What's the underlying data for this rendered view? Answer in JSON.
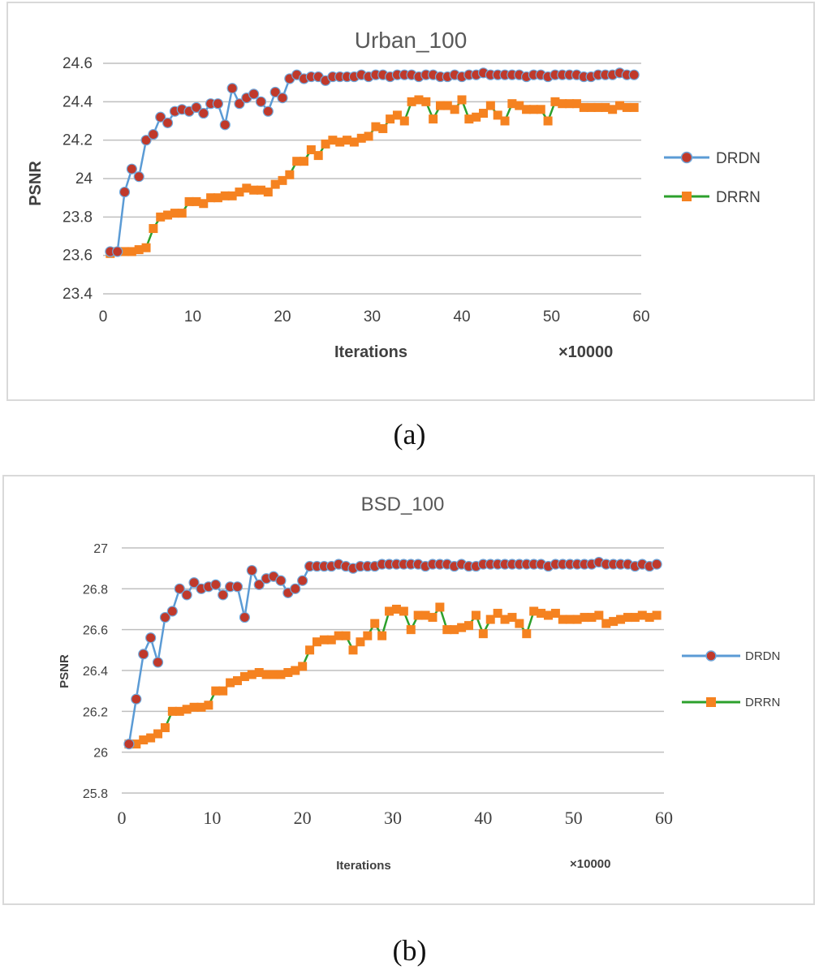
{
  "colors": {
    "drdn_line": "#5b9bd5",
    "drdn_marker_fill": "#c0392b",
    "drdn_marker_edge": "#6fa8dc",
    "drrn_line": "#2ca02c",
    "drrn_marker_fill": "#f58220",
    "grid": "#bfbfbf"
  },
  "chart_data": [
    {
      "type": "line",
      "title": "Urban_100",
      "xlabel": "Iterations",
      "ylabel": "PSNR",
      "x_multiplier_label": "×10000",
      "xlim": [
        0,
        60
      ],
      "ylim": [
        23.4,
        24.6
      ],
      "x_ticks": [
        "0",
        "10",
        "20",
        "30",
        "40",
        "50",
        "60"
      ],
      "y_ticks": [
        "23.4",
        "23.6",
        "23.8",
        "24",
        "24.2",
        "24.4",
        "24.6"
      ],
      "legend_position": "right",
      "grid": true,
      "series": [
        {
          "name": "DRDN",
          "x": [
            0.8,
            1.6,
            2.4,
            3.2,
            4.0,
            4.8,
            5.6,
            6.4,
            7.2,
            8.0,
            8.8,
            9.6,
            10.4,
            11.2,
            12.0,
            12.8,
            13.6,
            14.4,
            15.2,
            16.0,
            16.8,
            17.6,
            18.4,
            19.2,
            20.0,
            20.8,
            21.6,
            22.4,
            23.2,
            24.0,
            24.8,
            25.6,
            26.4,
            27.2,
            28.0,
            28.8,
            29.6,
            30.4,
            31.2,
            32.0,
            32.8,
            33.6,
            34.4,
            35.2,
            36.0,
            36.8,
            37.6,
            38.4,
            39.2,
            40.0,
            40.8,
            41.6,
            42.4,
            43.2,
            44.0,
            44.8,
            45.6,
            46.4,
            47.2,
            48.0,
            48.8,
            49.6,
            50.4,
            51.2,
            52.0,
            52.8,
            53.6,
            54.4,
            55.2,
            56.0,
            56.8,
            57.6,
            58.4,
            59.2
          ],
          "y": [
            23.62,
            23.62,
            23.93,
            24.05,
            24.01,
            24.2,
            24.23,
            24.32,
            24.29,
            24.35,
            24.36,
            24.35,
            24.37,
            24.34,
            24.39,
            24.39,
            24.28,
            24.47,
            24.39,
            24.42,
            24.44,
            24.4,
            24.35,
            24.45,
            24.42,
            24.52,
            24.54,
            24.52,
            24.53,
            24.53,
            24.51,
            24.53,
            24.53,
            24.53,
            24.53,
            24.54,
            24.53,
            24.54,
            24.54,
            24.53,
            24.54,
            24.54,
            24.54,
            24.53,
            24.54,
            24.54,
            24.53,
            24.53,
            24.54,
            24.53,
            24.54,
            24.54,
            24.55,
            24.54,
            24.54,
            24.54,
            24.54,
            24.54,
            24.53,
            24.54,
            24.54,
            24.53,
            24.54,
            24.54,
            24.54,
            24.54,
            24.53,
            24.53,
            24.54,
            24.54,
            24.54,
            24.55,
            24.54,
            24.54
          ]
        },
        {
          "name": "DRRN",
          "x": [
            0.8,
            1.6,
            2.4,
            3.2,
            4.0,
            4.8,
            5.6,
            6.4,
            7.2,
            8.0,
            8.8,
            9.6,
            10.4,
            11.2,
            12.0,
            12.8,
            13.6,
            14.4,
            15.2,
            16.0,
            16.8,
            17.6,
            18.4,
            19.2,
            20.0,
            20.8,
            21.6,
            22.4,
            23.2,
            24.0,
            24.8,
            25.6,
            26.4,
            27.2,
            28.0,
            28.8,
            29.6,
            30.4,
            31.2,
            32.0,
            32.8,
            33.6,
            34.4,
            35.2,
            36.0,
            36.8,
            37.6,
            38.4,
            39.2,
            40.0,
            40.8,
            41.6,
            42.4,
            43.2,
            44.0,
            44.8,
            45.6,
            46.4,
            47.2,
            48.0,
            48.8,
            49.6,
            50.4,
            51.2,
            52.0,
            52.8,
            53.6,
            54.4,
            55.2,
            56.0,
            56.8,
            57.6,
            58.4,
            59.2
          ],
          "y": [
            23.61,
            23.62,
            23.62,
            23.62,
            23.63,
            23.64,
            23.74,
            23.8,
            23.81,
            23.82,
            23.82,
            23.88,
            23.88,
            23.87,
            23.9,
            23.9,
            23.91,
            23.91,
            23.93,
            23.95,
            23.94,
            23.94,
            23.93,
            23.97,
            23.99,
            24.02,
            24.09,
            24.09,
            24.15,
            24.12,
            24.18,
            24.2,
            24.19,
            24.2,
            24.19,
            24.21,
            24.22,
            24.27,
            24.26,
            24.31,
            24.33,
            24.3,
            24.4,
            24.41,
            24.4,
            24.31,
            24.38,
            24.38,
            24.36,
            24.41,
            24.31,
            24.32,
            24.34,
            24.38,
            24.33,
            24.3,
            24.39,
            24.38,
            24.36,
            24.36,
            24.36,
            24.3,
            24.4,
            24.39,
            24.39,
            24.39,
            24.37,
            24.37,
            24.37,
            24.37,
            24.36,
            24.38,
            24.37,
            24.37
          ]
        }
      ]
    },
    {
      "type": "line",
      "title": "BSD_100",
      "xlabel": "Iterations",
      "ylabel": "PSNR",
      "x_multiplier_label": "×10000",
      "xlim": [
        0,
        60
      ],
      "ylim": [
        25.8,
        27.0
      ],
      "x_ticks": [
        "0",
        "10",
        "20",
        "30",
        "40",
        "50",
        "60"
      ],
      "y_ticks": [
        "25.8",
        "26",
        "26.2",
        "26.4",
        "26.6",
        "26.8",
        "27"
      ],
      "legend_position": "right",
      "grid": true,
      "series": [
        {
          "name": "DRDN",
          "x": [
            0.8,
            1.6,
            2.4,
            3.2,
            4.0,
            4.8,
            5.6,
            6.4,
            7.2,
            8.0,
            8.8,
            9.6,
            10.4,
            11.2,
            12.0,
            12.8,
            13.6,
            14.4,
            15.2,
            16.0,
            16.8,
            17.6,
            18.4,
            19.2,
            20.0,
            20.8,
            21.6,
            22.4,
            23.2,
            24.0,
            24.8,
            25.6,
            26.4,
            27.2,
            28.0,
            28.8,
            29.6,
            30.4,
            31.2,
            32.0,
            32.8,
            33.6,
            34.4,
            35.2,
            36.0,
            36.8,
            37.6,
            38.4,
            39.2,
            40.0,
            40.8,
            41.6,
            42.4,
            43.2,
            44.0,
            44.8,
            45.6,
            46.4,
            47.2,
            48.0,
            48.8,
            49.6,
            50.4,
            51.2,
            52.0,
            52.8,
            53.6,
            54.4,
            55.2,
            56.0,
            56.8,
            57.6,
            58.4,
            59.2
          ],
          "y": [
            26.04,
            26.26,
            26.48,
            26.56,
            26.44,
            26.66,
            26.69,
            26.8,
            26.77,
            26.83,
            26.8,
            26.81,
            26.82,
            26.77,
            26.81,
            26.81,
            26.66,
            26.89,
            26.82,
            26.85,
            26.86,
            26.84,
            26.78,
            26.8,
            26.84,
            26.91,
            26.91,
            26.91,
            26.91,
            26.92,
            26.91,
            26.9,
            26.91,
            26.91,
            26.91,
            26.92,
            26.92,
            26.92,
            26.92,
            26.92,
            26.92,
            26.91,
            26.92,
            26.92,
            26.92,
            26.91,
            26.92,
            26.91,
            26.91,
            26.92,
            26.92,
            26.92,
            26.92,
            26.92,
            26.92,
            26.92,
            26.92,
            26.92,
            26.91,
            26.92,
            26.92,
            26.92,
            26.92,
            26.92,
            26.92,
            26.93,
            26.92,
            26.92,
            26.92,
            26.92,
            26.91,
            26.92,
            26.91,
            26.92
          ]
        },
        {
          "name": "DRRN",
          "x": [
            0.8,
            1.6,
            2.4,
            3.2,
            4.0,
            4.8,
            5.6,
            6.4,
            7.2,
            8.0,
            8.8,
            9.6,
            10.4,
            11.2,
            12.0,
            12.8,
            13.6,
            14.4,
            15.2,
            16.0,
            16.8,
            17.6,
            18.4,
            19.2,
            20.0,
            20.8,
            21.6,
            22.4,
            23.2,
            24.0,
            24.8,
            25.6,
            26.4,
            27.2,
            28.0,
            28.8,
            29.6,
            30.4,
            31.2,
            32.0,
            32.8,
            33.6,
            34.4,
            35.2,
            36.0,
            36.8,
            37.6,
            38.4,
            39.2,
            40.0,
            40.8,
            41.6,
            42.4,
            43.2,
            44.0,
            44.8,
            45.6,
            46.4,
            47.2,
            48.0,
            48.8,
            49.6,
            50.4,
            51.2,
            52.0,
            52.8,
            53.6,
            54.4,
            55.2,
            56.0,
            56.8,
            57.6,
            58.4,
            59.2
          ],
          "y": [
            26.04,
            26.04,
            26.06,
            26.07,
            26.09,
            26.12,
            26.2,
            26.2,
            26.21,
            26.22,
            26.22,
            26.23,
            26.3,
            26.3,
            26.34,
            26.35,
            26.37,
            26.38,
            26.39,
            26.38,
            26.38,
            26.38,
            26.39,
            26.4,
            26.42,
            26.5,
            26.54,
            26.55,
            26.55,
            26.57,
            26.57,
            26.5,
            26.54,
            26.57,
            26.63,
            26.57,
            26.69,
            26.7,
            26.69,
            26.6,
            26.67,
            26.67,
            26.66,
            26.71,
            26.6,
            26.6,
            26.61,
            26.62,
            26.67,
            26.58,
            26.65,
            26.68,
            26.65,
            26.66,
            26.63,
            26.58,
            26.69,
            26.68,
            26.67,
            26.68,
            26.65,
            26.65,
            26.65,
            26.66,
            26.66,
            26.67,
            26.63,
            26.64,
            26.65,
            26.66,
            26.66,
            26.67,
            26.66,
            26.67
          ]
        }
      ]
    }
  ],
  "captions": [
    "(a)",
    "(b)"
  ]
}
